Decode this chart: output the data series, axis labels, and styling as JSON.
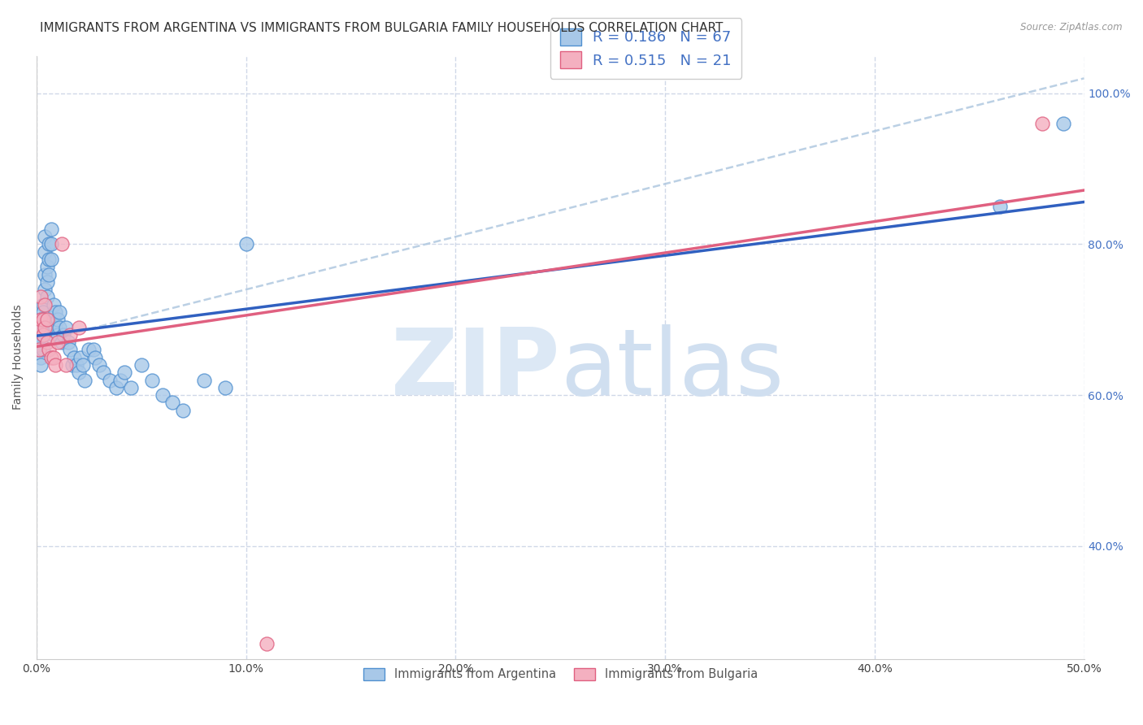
{
  "title": "IMMIGRANTS FROM ARGENTINA VS IMMIGRANTS FROM BULGARIA FAMILY HOUSEHOLDS CORRELATION CHART",
  "source": "Source: ZipAtlas.com",
  "ylabel_left": "Family Households",
  "legend_argentina": "Immigrants from Argentina",
  "legend_bulgaria": "Immigrants from Bulgaria",
  "legend_r_argentina": "R = 0.186",
  "legend_n_argentina": "N = 67",
  "legend_r_bulgaria": "R = 0.515",
  "legend_n_bulgaria": "N = 21",
  "argentina_fill": "#a8c8e8",
  "bulgaria_fill": "#f4b0c0",
  "argentina_edge": "#5090d0",
  "bulgaria_edge": "#e06080",
  "argentina_line": "#3060c0",
  "bulgaria_line": "#e06080",
  "ref_line_color": "#b0c8e0",
  "argentina_scatter_x": [
    0.001,
    0.001,
    0.001,
    0.002,
    0.002,
    0.002,
    0.002,
    0.002,
    0.003,
    0.003,
    0.003,
    0.003,
    0.003,
    0.004,
    0.004,
    0.004,
    0.004,
    0.005,
    0.005,
    0.005,
    0.006,
    0.006,
    0.006,
    0.007,
    0.007,
    0.007,
    0.008,
    0.008,
    0.008,
    0.009,
    0.009,
    0.01,
    0.01,
    0.011,
    0.011,
    0.012,
    0.013,
    0.014,
    0.015,
    0.016,
    0.017,
    0.018,
    0.019,
    0.02,
    0.021,
    0.022,
    0.023,
    0.025,
    0.027,
    0.028,
    0.03,
    0.032,
    0.035,
    0.038,
    0.04,
    0.042,
    0.045,
    0.05,
    0.055,
    0.06,
    0.065,
    0.07,
    0.08,
    0.09,
    0.1,
    0.46,
    0.49
  ],
  "argentina_scatter_y": [
    0.695,
    0.68,
    0.66,
    0.7,
    0.69,
    0.67,
    0.65,
    0.64,
    0.72,
    0.71,
    0.7,
    0.68,
    0.66,
    0.81,
    0.79,
    0.76,
    0.74,
    0.77,
    0.75,
    0.73,
    0.8,
    0.78,
    0.76,
    0.82,
    0.8,
    0.78,
    0.72,
    0.7,
    0.68,
    0.71,
    0.69,
    0.7,
    0.68,
    0.71,
    0.69,
    0.67,
    0.68,
    0.69,
    0.67,
    0.66,
    0.64,
    0.65,
    0.64,
    0.63,
    0.65,
    0.64,
    0.62,
    0.66,
    0.66,
    0.65,
    0.64,
    0.63,
    0.62,
    0.61,
    0.62,
    0.63,
    0.61,
    0.64,
    0.62,
    0.6,
    0.59,
    0.58,
    0.62,
    0.61,
    0.8,
    0.85,
    0.96
  ],
  "bulgaria_scatter_x": [
    0.001,
    0.001,
    0.002,
    0.002,
    0.003,
    0.003,
    0.004,
    0.004,
    0.005,
    0.005,
    0.006,
    0.007,
    0.008,
    0.009,
    0.01,
    0.012,
    0.014,
    0.016,
    0.02,
    0.11,
    0.48
  ],
  "bulgaria_scatter_y": [
    0.69,
    0.66,
    0.73,
    0.7,
    0.7,
    0.68,
    0.72,
    0.69,
    0.7,
    0.67,
    0.66,
    0.65,
    0.65,
    0.64,
    0.67,
    0.8,
    0.64,
    0.68,
    0.69,
    0.27,
    0.96
  ],
  "xlim": [
    0.0,
    0.5
  ],
  "ylim": [
    0.25,
    1.05
  ],
  "x_ticks": [
    0.0,
    0.1,
    0.2,
    0.3,
    0.4,
    0.5
  ],
  "y_ticks": [
    0.4,
    0.6,
    0.8,
    1.0
  ],
  "background_color": "#ffffff",
  "grid_color": "#d0d8e8",
  "title_fontsize": 11,
  "axis_label_fontsize": 10,
  "tick_fontsize": 10,
  "watermark_zip": "ZIP",
  "watermark_atlas": "atlas",
  "watermark_color": "#dce8f5"
}
